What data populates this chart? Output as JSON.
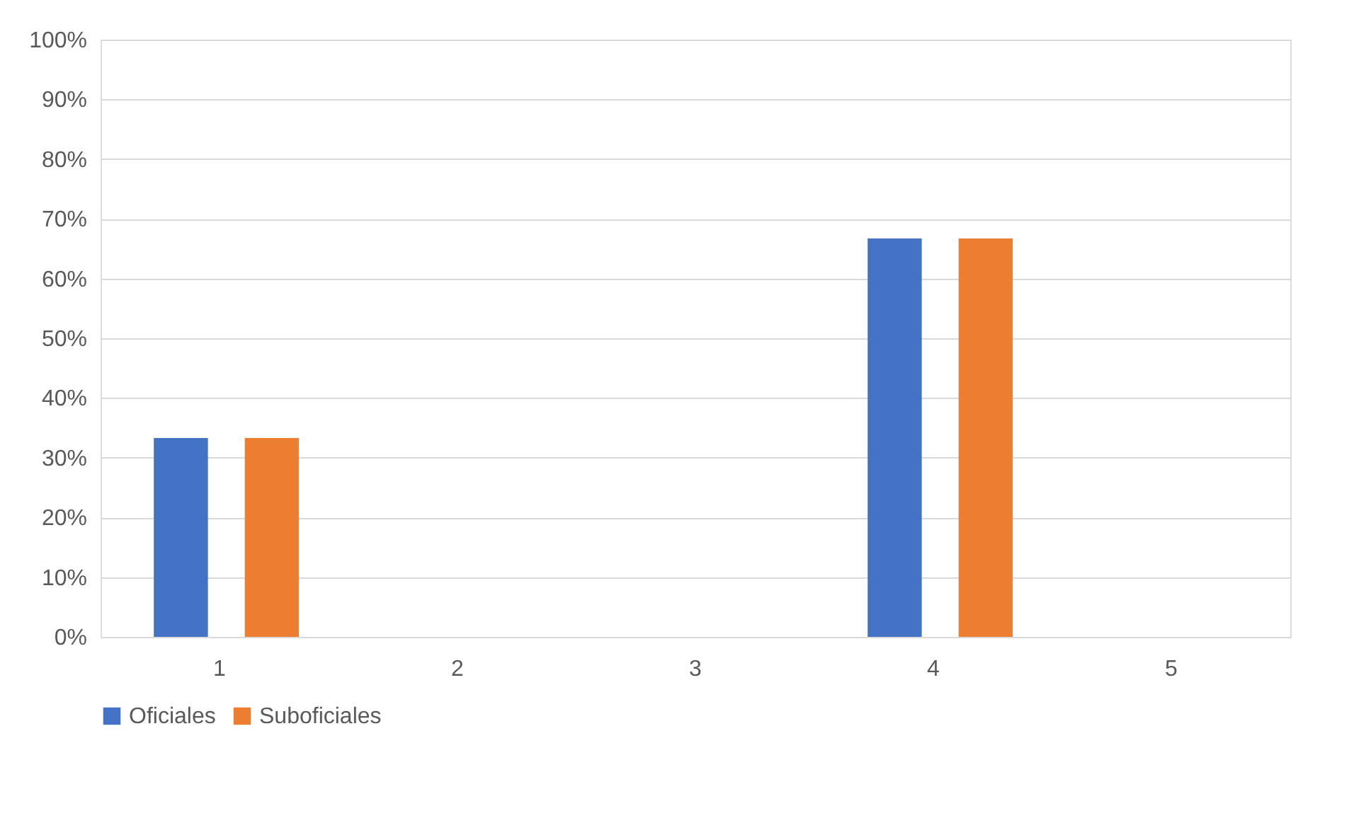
{
  "chart_data": {
    "type": "bar",
    "categories": [
      "1",
      "2",
      "3",
      "4",
      "5"
    ],
    "series": [
      {
        "name": "Oficiales",
        "color": "#4472c4",
        "values": [
          33.3,
          0,
          0,
          66.7,
          0
        ]
      },
      {
        "name": "Suboficiales",
        "color": "#ed7d31",
        "values": [
          33.3,
          0,
          0,
          66.7,
          0
        ]
      }
    ],
    "ylim": [
      0,
      100
    ],
    "yticks": [
      {
        "value": 0,
        "label": "0%"
      },
      {
        "value": 10,
        "label": "10%"
      },
      {
        "value": 20,
        "label": "20%"
      },
      {
        "value": 30,
        "label": "30%"
      },
      {
        "value": 40,
        "label": "40%"
      },
      {
        "value": 50,
        "label": "50%"
      },
      {
        "value": 60,
        "label": "60%"
      },
      {
        "value": 70,
        "label": "70%"
      },
      {
        "value": 80,
        "label": "80%"
      },
      {
        "value": 90,
        "label": "90%"
      },
      {
        "value": 100,
        "label": "100%"
      }
    ],
    "grid": "y",
    "legend": "bottom"
  }
}
